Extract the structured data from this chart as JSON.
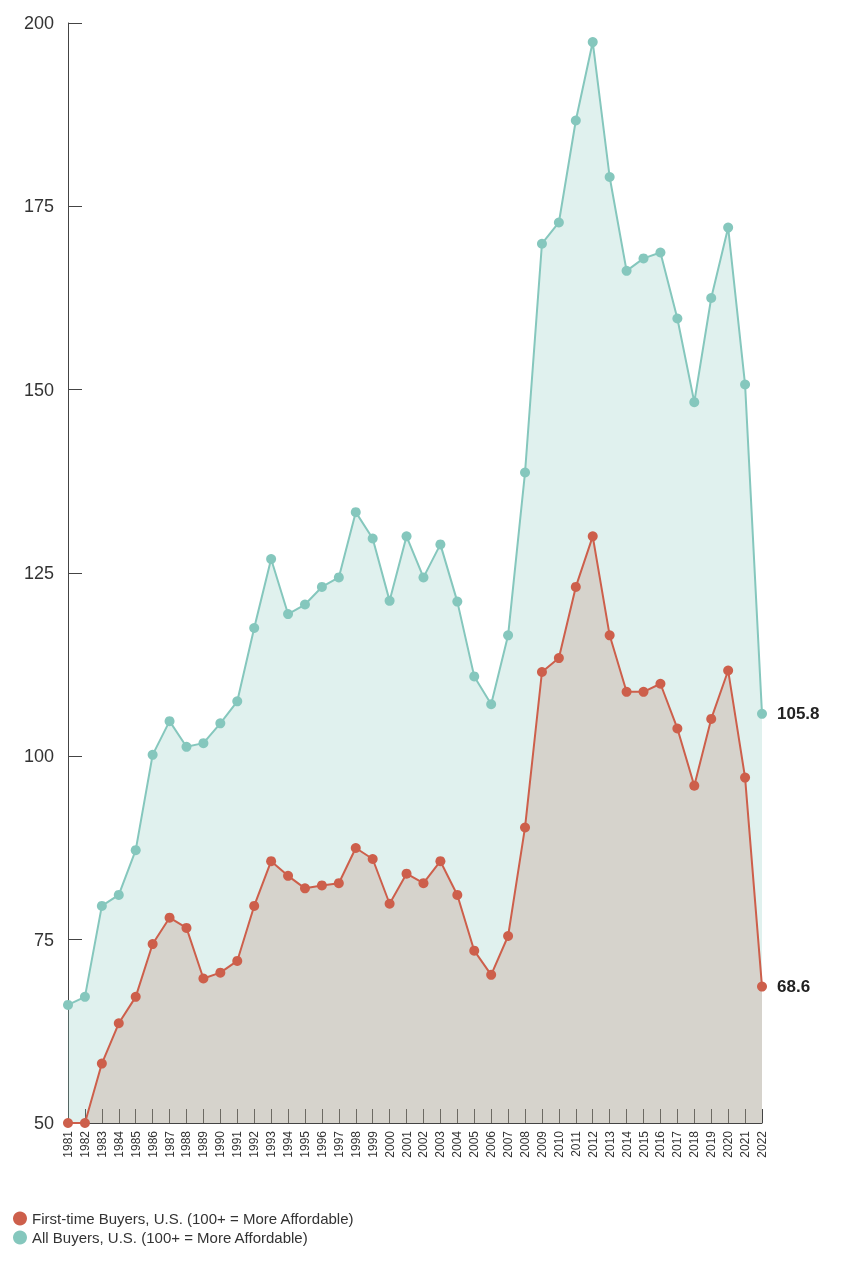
{
  "chart_data": {
    "type": "area",
    "categories": [
      "1981",
      "1982",
      "1983",
      "1984",
      "1985",
      "1986",
      "1987",
      "1988",
      "1989",
      "1990",
      "1991",
      "1992",
      "1993",
      "1994",
      "1995",
      "1996",
      "1997",
      "1998",
      "1999",
      "2000",
      "2001",
      "2002",
      "2003",
      "2004",
      "2005",
      "2006",
      "2007",
      "2008",
      "2009",
      "2010",
      "2011",
      "2012",
      "2013",
      "2014",
      "2015",
      "2016",
      "2017",
      "2018",
      "2019",
      "2020",
      "2021",
      "2022"
    ],
    "series": [
      {
        "name": "First-time Buyers, U.S. (100+ = More Affordable)",
        "color": "#cd5f4b",
        "values": [
          50,
          50,
          58.1,
          63.6,
          67.2,
          74.4,
          78.0,
          76.6,
          69.7,
          70.5,
          72.1,
          79.6,
          85.7,
          83.7,
          82.0,
          82.4,
          82.7,
          87.5,
          86.0,
          79.9,
          84.0,
          82.7,
          85.7,
          81.1,
          73.5,
          70.2,
          75.5,
          90.3,
          111.5,
          113.4,
          123.1,
          130.0,
          116.5,
          108.8,
          108.8,
          109.9,
          103.8,
          96.0,
          105.1,
          111.7,
          97.1,
          68.6
        ],
        "value_labels": [
          null,
          null,
          null,
          null,
          null,
          null,
          null,
          null,
          null,
          null,
          null,
          null,
          null,
          null,
          null,
          null,
          null,
          null,
          null,
          null,
          null,
          null,
          null,
          null,
          null,
          null,
          null,
          null,
          null,
          null,
          null,
          null,
          null,
          null,
          null,
          null,
          null,
          null,
          null,
          null,
          null,
          "68.6"
        ]
      },
      {
        "name": "All Buyers, U.S. (100+ = More Affordable)",
        "color": "#85c7bd",
        "values": [
          66.1,
          67.2,
          79.6,
          81.1,
          87.2,
          100.2,
          104.8,
          101.3,
          101.8,
          104.5,
          107.5,
          117.5,
          126.9,
          119.4,
          120.7,
          123.1,
          124.4,
          133.3,
          129.7,
          121.2,
          130.0,
          124.4,
          128.9,
          121.1,
          110.9,
          107.1,
          116.5,
          138.7,
          169.9,
          172.8,
          186.7,
          197.4,
          179.0,
          166.2,
          167.9,
          168.7,
          159.7,
          148.3,
          162.5,
          172.1,
          150.7,
          105.8
        ],
        "value_labels": [
          null,
          null,
          null,
          null,
          null,
          null,
          null,
          null,
          null,
          null,
          null,
          null,
          null,
          null,
          null,
          null,
          null,
          null,
          null,
          null,
          null,
          null,
          null,
          null,
          null,
          null,
          null,
          null,
          null,
          null,
          null,
          null,
          null,
          null,
          null,
          null,
          null,
          null,
          null,
          null,
          null,
          "105.8"
        ]
      }
    ],
    "ylim": [
      50,
      200
    ],
    "yticks": [
      50,
      75,
      100,
      125,
      150,
      175,
      200
    ],
    "grid": false,
    "legend": "bottom left",
    "marker": "circle",
    "line_style": "solid"
  }
}
